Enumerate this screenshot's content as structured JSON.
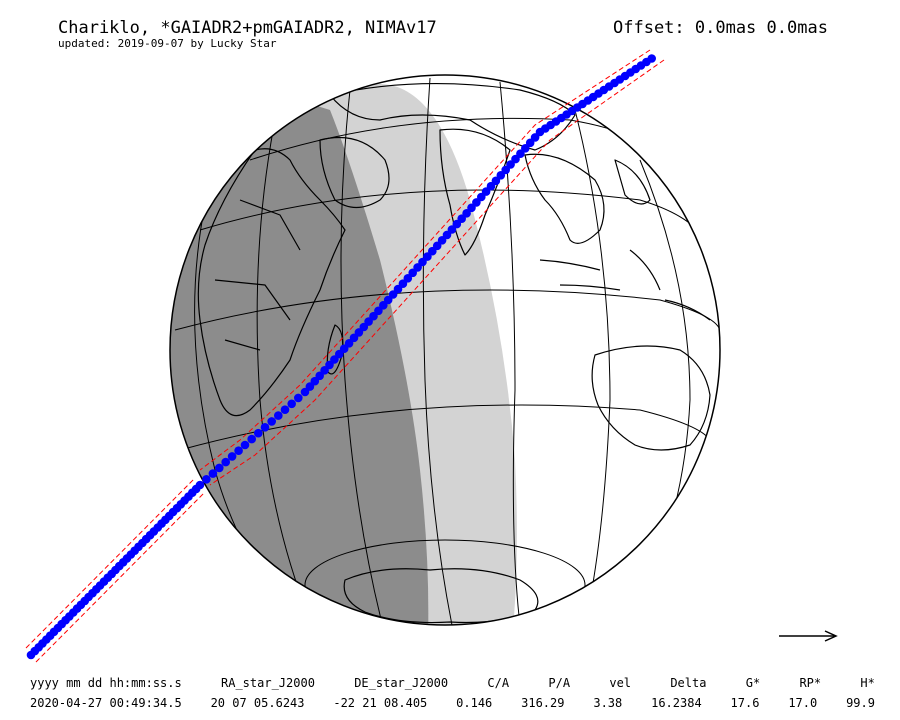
{
  "header": {
    "title": "Chariklo, *GAIADR2+pmGAIADR2, NIMAv17",
    "subtitle": "updated: 2019-09-07 by Lucky Star",
    "offset": "Offset: 0.0mas 0.0mas"
  },
  "table": {
    "headers": [
      "yyyy mm dd hh:mm:ss.s",
      "RA_star_J2000",
      "DE_star_J2000",
      "C/A",
      "P/A",
      "vel",
      "Delta",
      "G*",
      "RP*",
      "H*"
    ],
    "values": [
      "2020-04-27 00:49:34.5",
      "20 07 05.6243",
      "-22 21 08.405",
      "0.146",
      "316.29",
      "3.38",
      "16.2384",
      "17.6",
      "17.0",
      "99.9"
    ]
  },
  "colors": {
    "night": "#8c8c8c",
    "twilight": "#d3d3d3",
    "path_dots": "#0000ff",
    "path_limits": "#ff0000"
  },
  "icons": {
    "direction": "right-arrow-icon"
  }
}
